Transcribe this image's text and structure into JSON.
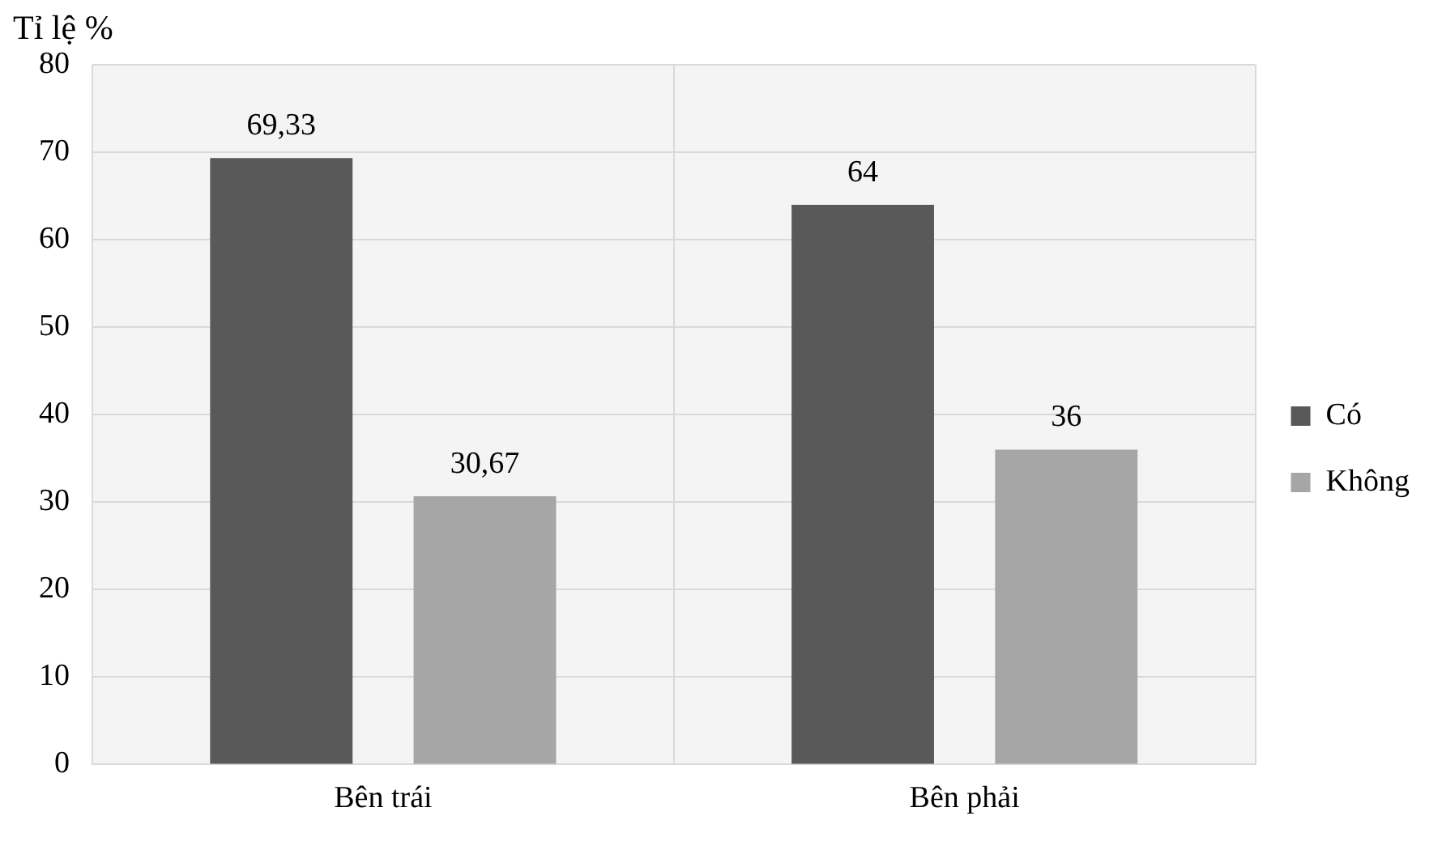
{
  "chart_data": {
    "type": "bar",
    "ylabel": "Tỉ lệ %",
    "categories": [
      "Bên trái",
      "Bên phải"
    ],
    "series": [
      {
        "name": "Có",
        "color": "#595959",
        "values": [
          69.33,
          64
        ],
        "value_labels": [
          "69,33",
          "64"
        ]
      },
      {
        "name": "Không",
        "color": "#a6a6a6",
        "values": [
          30.67,
          36
        ],
        "value_labels": [
          "30,67",
          "36"
        ]
      }
    ],
    "ylim": [
      0,
      80
    ],
    "yticks": [
      0,
      10,
      20,
      30,
      40,
      50,
      60,
      70,
      80
    ],
    "grid": true,
    "legend": "right"
  }
}
